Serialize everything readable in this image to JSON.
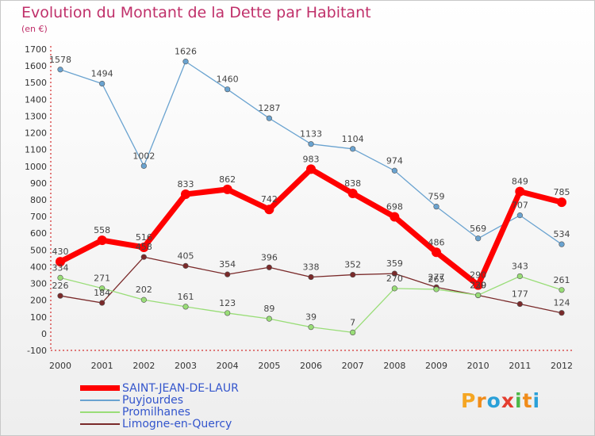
{
  "title": "Evolution du Montant de la Dette par Habitant",
  "subtitle": "(en €)",
  "logo": {
    "letters": [
      "P",
      "r",
      "o",
      "x",
      "i",
      "t",
      "i"
    ],
    "colors": [
      "#f5a623",
      "#f08c1a",
      "#2aa0d8",
      "#e43d2f",
      "#4cb848",
      "#f08c1a",
      "#2aa0d8"
    ]
  },
  "chart_data": {
    "type": "line",
    "x": [
      "2000",
      "2001",
      "2002",
      "2003",
      "2004",
      "2005",
      "2006",
      "2007",
      "2008",
      "2009",
      "2010",
      "2011",
      "2012"
    ],
    "ylim": [
      -100,
      1700
    ],
    "yticks": [
      -100,
      0,
      100,
      200,
      300,
      400,
      500,
      600,
      700,
      800,
      900,
      1000,
      1100,
      1200,
      1300,
      1400,
      1500,
      1600,
      1700
    ],
    "grid": false,
    "legend_placement": "bottom-left",
    "series": [
      {
        "name": "SAINT-JEAN-DE-LAUR",
        "color": "#ff0000",
        "values": [
          430,
          558,
          516,
          833,
          862,
          742,
          983,
          838,
          698,
          486,
          290,
          849,
          785
        ]
      },
      {
        "name": "Puyjourdes",
        "color": "#6aa3d0",
        "values": [
          1578,
          1494,
          1002,
          1626,
          1460,
          1287,
          1133,
          1104,
          974,
          759,
          569,
          707,
          534
        ]
      },
      {
        "name": "Promilhanes",
        "color": "#99dd77",
        "values": [
          334,
          271,
          202,
          161,
          123,
          89,
          39,
          7,
          270,
          265,
          230,
          343,
          261
        ]
      },
      {
        "name": "Limogne-en-Quercy",
        "color": "#7a2a2a",
        "values": [
          226,
          184,
          458,
          405,
          354,
          396,
          338,
          352,
          359,
          277,
          229,
          177,
          124
        ]
      }
    ]
  }
}
